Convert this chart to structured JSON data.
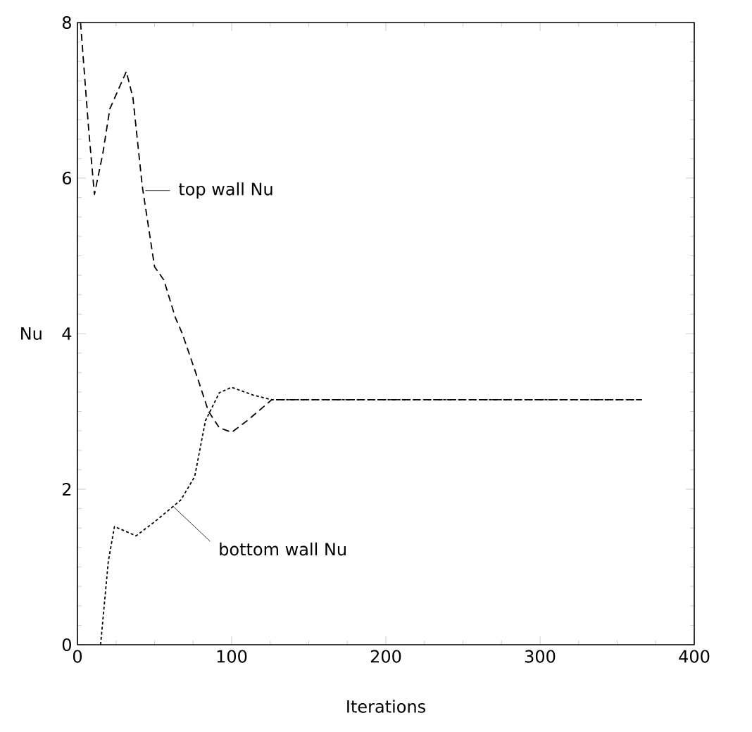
{
  "chart_data": {
    "type": "line",
    "xlabel": "Iterations",
    "ylabel": "Nu",
    "xlim": [
      0,
      400
    ],
    "ylim": [
      0,
      8
    ],
    "xticks": [
      0,
      100,
      200,
      300,
      400
    ],
    "yticks": [
      0,
      2,
      4,
      6,
      8
    ],
    "series": [
      {
        "color": "#000000",
        "line_style": "dashed",
        "x": [
          2,
          7.3,
          11,
          16.4,
          21,
          31.7,
          36,
          42,
          50,
          56,
          63.6,
          68,
          77,
          85,
          92,
          100,
          110,
          126,
          200,
          300,
          366
        ],
        "values": [
          8.0,
          6.62,
          5.79,
          6.31,
          6.89,
          7.37,
          7.03,
          5.9,
          4.86,
          4.69,
          4.2,
          4.0,
          3.48,
          3.0,
          2.79,
          2.73,
          2.88,
          3.15,
          3.15,
          3.15,
          3.15
        ]
      },
      {
        "color": "#000000",
        "line_style": "dotted",
        "x": [
          15,
          20,
          24,
          38,
          50,
          67,
          76,
          83,
          92,
          100,
          114,
          126,
          200,
          300,
          366
        ],
        "values": [
          0,
          1.07,
          1.52,
          1.4,
          1.58,
          1.86,
          2.16,
          2.88,
          3.24,
          3.31,
          3.21,
          3.15,
          3.15,
          3.15,
          3.15
        ]
      }
    ],
    "annotations": [
      {
        "text": "top wall Nu",
        "x": 44,
        "y": 5.84
      },
      {
        "text": "bottom wall Nu",
        "x": 62,
        "y": 1.78
      }
    ]
  }
}
